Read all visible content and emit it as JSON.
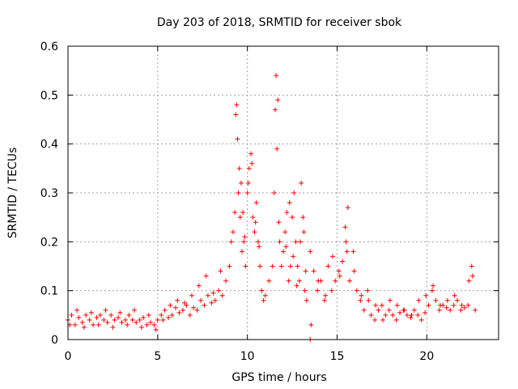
{
  "chart_data": {
    "type": "scatter",
    "title": "Day 203 of 2018, SRMTID for receiver sbok",
    "xlabel": "GPS time / hours",
    "ylabel": "SRMTID / TECUs",
    "xlim": [
      0,
      24
    ],
    "ylim": [
      0,
      0.6
    ],
    "xticks": [
      0,
      5,
      10,
      15,
      20
    ],
    "xtick_labels": [
      "0",
      "5",
      "10",
      "15",
      "20"
    ],
    "yticks": [
      0,
      0.1,
      0.2,
      0.3,
      0.4,
      0.5,
      0.6
    ],
    "ytick_labels": [
      "0",
      "0.1",
      "0.2",
      "0.3",
      "0.4",
      "0.5",
      "0.6"
    ],
    "grid": true,
    "marker": "+",
    "color": "#ff0000",
    "series": [
      {
        "name": "SRMTID",
        "x": [
          0.0,
          0.2,
          0.4,
          0.6,
          0.8,
          1.0,
          1.2,
          1.4,
          1.6,
          1.8,
          2.0,
          2.2,
          2.4,
          2.6,
          2.8,
          3.0,
          3.2,
          3.4,
          3.6,
          3.8,
          4.0,
          4.2,
          4.4,
          4.6,
          4.8,
          5.0,
          5.2,
          5.4,
          5.6,
          5.8,
          6.0,
          6.2,
          6.4,
          6.6,
          6.8,
          7.0,
          7.2,
          7.4,
          7.6,
          7.8,
          8.0,
          8.2,
          8.4,
          8.6,
          8.8,
          9.0,
          9.1,
          9.2,
          9.3,
          9.4,
          9.5,
          9.6,
          9.7,
          9.8,
          9.9,
          10.0,
          10.1,
          10.2,
          10.3,
          10.4,
          10.5,
          10.6,
          10.7,
          10.8,
          10.9,
          11.0,
          11.2,
          11.4,
          11.5,
          11.6,
          11.7,
          11.8,
          11.9,
          12.0,
          12.1,
          12.2,
          12.3,
          12.4,
          12.5,
          12.6,
          12.7,
          12.8,
          12.9,
          13.0,
          13.1,
          13.2,
          13.3,
          13.5,
          13.7,
          13.9,
          14.1,
          14.3,
          14.5,
          14.7,
          14.9,
          15.1,
          15.3,
          15.5,
          15.6,
          15.7,
          15.9,
          16.1,
          16.3,
          16.5,
          16.7,
          16.9,
          17.1,
          17.3,
          17.5,
          17.7,
          17.9,
          18.1,
          18.3,
          18.5,
          18.7,
          18.9,
          19.1,
          19.3,
          19.5,
          19.7,
          19.9,
          20.1,
          20.3,
          20.5,
          20.7,
          20.9,
          21.1,
          21.3,
          21.5,
          21.7,
          21.9,
          22.1,
          22.3,
          22.5,
          22.7,
          0.1,
          0.5,
          0.9,
          1.3,
          1.7,
          2.1,
          2.5,
          2.9,
          3.3,
          3.7,
          4.1,
          4.5,
          4.9,
          5.3,
          5.7,
          6.1,
          6.5,
          6.9,
          7.3,
          7.7,
          8.1,
          8.5,
          9.35,
          9.45,
          9.55,
          9.65,
          9.75,
          9.85,
          10.05,
          10.25,
          10.45,
          10.65,
          11.55,
          11.65,
          11.75,
          12.15,
          12.35,
          12.55,
          12.75,
          12.95,
          13.15,
          13.25,
          13.55,
          13.95,
          14.35,
          14.75,
          15.15,
          15.45,
          15.55,
          15.95,
          16.35,
          16.75,
          17.15,
          17.55,
          17.95,
          18.35,
          18.75,
          19.15,
          19.55,
          19.95,
          20.35,
          20.75,
          21.15,
          21.55,
          21.95,
          22.35,
          22.55,
          13.5
        ],
        "y": [
          0.04,
          0.05,
          0.03,
          0.045,
          0.035,
          0.05,
          0.04,
          0.03,
          0.045,
          0.05,
          0.04,
          0.035,
          0.05,
          0.04,
          0.045,
          0.035,
          0.04,
          0.05,
          0.04,
          0.035,
          0.04,
          0.045,
          0.03,
          0.035,
          0.03,
          0.04,
          0.05,
          0.06,
          0.045,
          0.05,
          0.065,
          0.055,
          0.06,
          0.07,
          0.05,
          0.065,
          0.06,
          0.08,
          0.07,
          0.09,
          0.075,
          0.08,
          0.1,
          0.09,
          0.12,
          0.15,
          0.2,
          0.22,
          0.26,
          0.48,
          0.3,
          0.25,
          0.18,
          0.2,
          0.15,
          0.3,
          0.35,
          0.38,
          0.25,
          0.22,
          0.28,
          0.2,
          0.15,
          0.1,
          0.08,
          0.09,
          0.12,
          0.15,
          0.3,
          0.54,
          0.49,
          0.2,
          0.15,
          0.18,
          0.22,
          0.26,
          0.12,
          0.15,
          0.25,
          0.3,
          0.2,
          0.15,
          0.12,
          0.32,
          0.25,
          0.1,
          0.08,
          0.18,
          0.14,
          0.1,
          0.12,
          0.08,
          0.15,
          0.1,
          0.12,
          0.14,
          0.16,
          0.2,
          0.27,
          0.12,
          0.18,
          0.1,
          0.08,
          0.06,
          0.1,
          0.05,
          0.04,
          0.06,
          0.07,
          0.05,
          0.06,
          0.05,
          0.04,
          0.055,
          0.06,
          0.05,
          0.045,
          0.06,
          0.05,
          0.04,
          0.055,
          0.07,
          0.1,
          0.08,
          0.06,
          0.07,
          0.065,
          0.06,
          0.07,
          0.08,
          0.06,
          0.065,
          0.07,
          0.15,
          0.06,
          0.03,
          0.06,
          0.025,
          0.055,
          0.03,
          0.06,
          0.025,
          0.055,
          0.03,
          0.06,
          0.025,
          0.05,
          0.02,
          0.04,
          0.07,
          0.08,
          0.075,
          0.09,
          0.11,
          0.13,
          0.095,
          0.14,
          0.46,
          0.41,
          0.35,
          0.32,
          0.26,
          0.21,
          0.32,
          0.36,
          0.24,
          0.19,
          0.47,
          0.39,
          0.24,
          0.19,
          0.28,
          0.17,
          0.11,
          0.2,
          0.22,
          0.14,
          0.03,
          0.12,
          0.09,
          0.17,
          0.13,
          0.23,
          0.18,
          0.14,
          0.09,
          0.08,
          0.07,
          0.04,
          0.08,
          0.07,
          0.06,
          0.05,
          0.08,
          0.09,
          0.11,
          0.07,
          0.08,
          0.09,
          0.07,
          0.12,
          0.13,
          0.0
        ]
      }
    ]
  }
}
